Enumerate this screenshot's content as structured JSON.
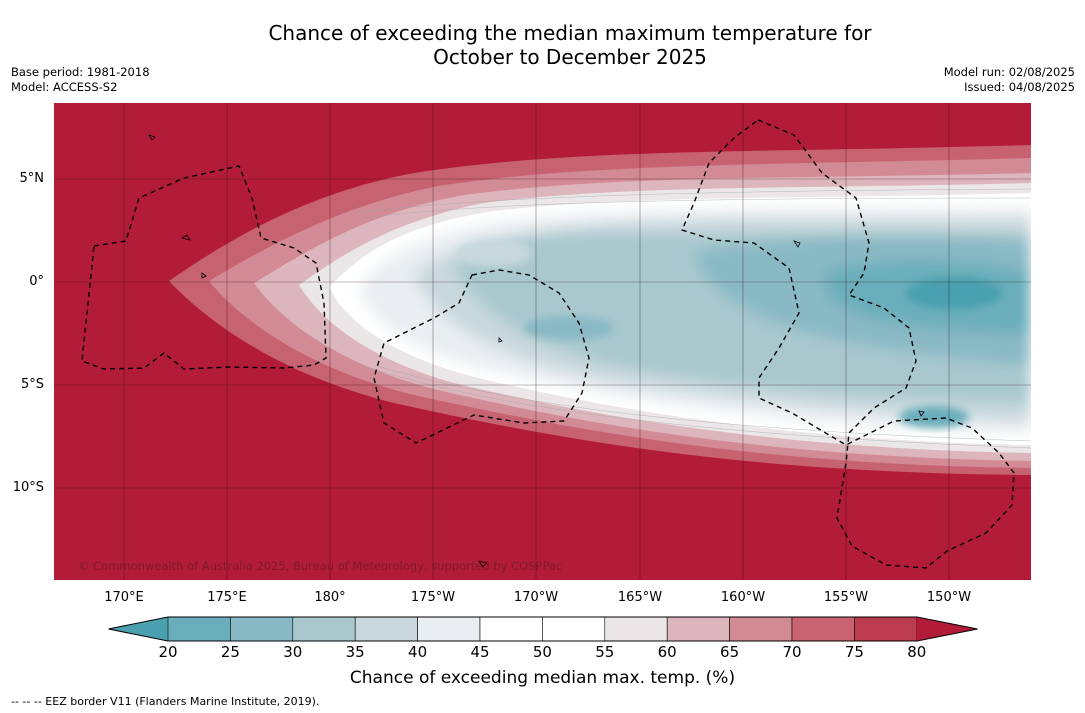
{
  "title": {
    "line1": "Chance of exceeding the median maximum temperature for",
    "line2": "October to December 2025"
  },
  "meta": {
    "base_period": "Base period: 1981-2018",
    "model": "Model: ACCESS-S2",
    "model_run": "Model run: 02/08/2025",
    "issued": "Issued: 04/08/2025"
  },
  "map": {
    "latitude_labels": [
      "5°N",
      "0°",
      "5°S",
      "10°S"
    ],
    "longitude_labels": [
      "170°E",
      "175°E",
      "180°",
      "175°W",
      "170°W",
      "165°W",
      "160°W",
      "155°W",
      "150°W"
    ],
    "copyright": "© Commonwealth of Australia 2025, Bureau of Meteorology, supported by COSPPac",
    "background_color": "#b31c38",
    "border_style": "dashed black"
  },
  "colorbar": {
    "ticks": [
      "20",
      "25",
      "30",
      "35",
      "40",
      "45",
      "50",
      "55",
      "60",
      "65",
      "70",
      "75",
      "80"
    ],
    "colors": [
      "#4aa0ae",
      "#6aaebb",
      "#89b9c4",
      "#a8c8ce",
      "#c8d8dd",
      "#e9eef0",
      "#ffffff",
      "#ffffff",
      "#ebe6e7",
      "#ddb5bc",
      "#d28a94",
      "#c76270",
      "#bc3c4f",
      "#b31c38"
    ],
    "label": "Chance of exceeding median max. temp. (%)"
  },
  "footnote": "--  --  -- EEZ border V11 (Flanders Marine Institute, 2019)."
}
